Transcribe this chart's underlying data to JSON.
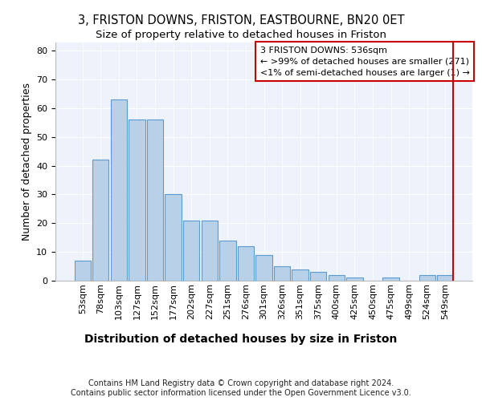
{
  "title1": "3, FRISTON DOWNS, FRISTON, EASTBOURNE, BN20 0ET",
  "title2": "Size of property relative to detached houses in Friston",
  "xlabel": "Distribution of detached houses by size in Friston",
  "ylabel": "Number of detached properties",
  "categories": [
    "53sqm",
    "78sqm",
    "103sqm",
    "127sqm",
    "152sqm",
    "177sqm",
    "202sqm",
    "227sqm",
    "251sqm",
    "276sqm",
    "301sqm",
    "326sqm",
    "351sqm",
    "375sqm",
    "400sqm",
    "425sqm",
    "450sqm",
    "475sqm",
    "499sqm",
    "524sqm",
    "549sqm"
  ],
  "values": [
    7,
    42,
    63,
    56,
    56,
    30,
    21,
    21,
    14,
    12,
    9,
    5,
    4,
    3,
    2,
    1,
    0,
    1,
    0,
    2,
    2
  ],
  "bar_color": "#b8d0e8",
  "bar_edge_color": "#5b9bd5",
  "red_line_index": 20,
  "annotation_text_line1": "3 FRISTON DOWNS: 536sqm",
  "annotation_text_line2": "← >99% of detached houses are smaller (271)",
  "annotation_text_line3": "<1% of semi-detached houses are larger (1) →",
  "annotation_box_color": "#cc0000",
  "ylim": [
    0,
    83
  ],
  "yticks": [
    0,
    10,
    20,
    30,
    40,
    50,
    60,
    70,
    80
  ],
  "background_color": "#eef2fb",
  "footer": "Contains HM Land Registry data © Crown copyright and database right 2024.\nContains public sector information licensed under the Open Government Licence v3.0.",
  "title1_fontsize": 10.5,
  "title2_fontsize": 9.5,
  "xlabel_fontsize": 10,
  "ylabel_fontsize": 9,
  "tick_fontsize": 8,
  "annotation_fontsize": 8,
  "footer_fontsize": 7
}
